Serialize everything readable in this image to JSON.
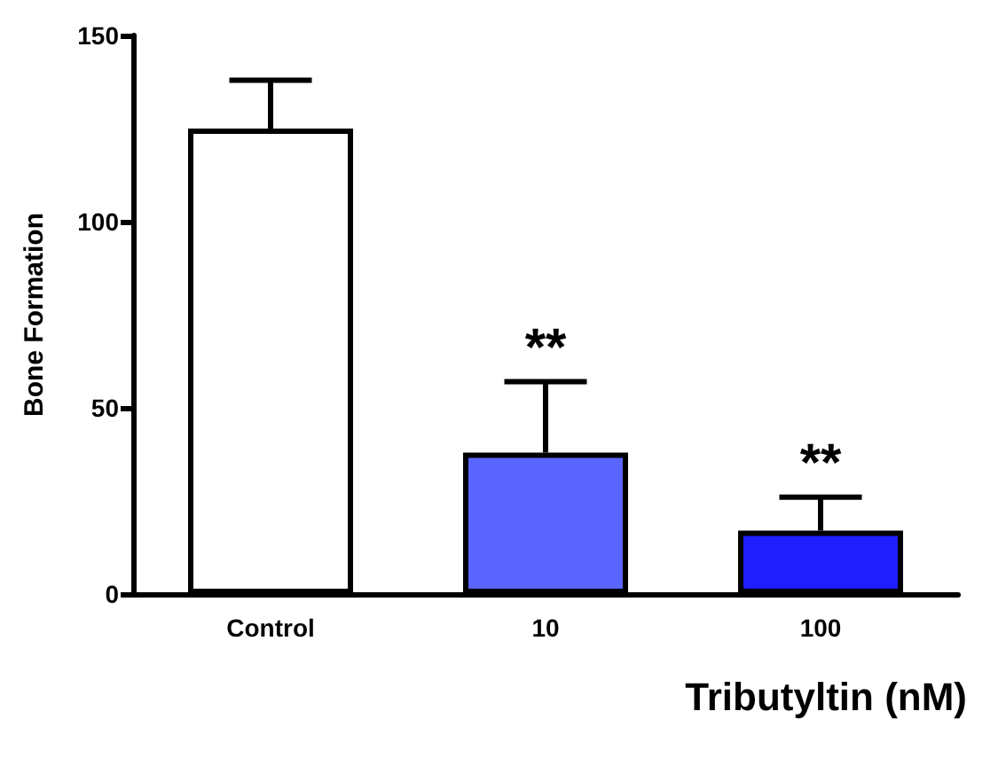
{
  "chart_data": {
    "type": "bar",
    "xlabel": "Tributyltin (nM)",
    "ylabel": "Bone Formation",
    "categories": [
      "Control",
      "10",
      "100"
    ],
    "values": [
      125,
      38,
      17
    ],
    "colors": [
      "#ffffff",
      "#5a64ff",
      "#1e1eff"
    ],
    "errors": [
      [
        125,
        138
      ],
      [
        38,
        57
      ],
      [
        17,
        26
      ]
    ],
    "ylim": [
      0,
      150
    ],
    "yticks": [
      0,
      50,
      100,
      150
    ],
    "grid": false,
    "annotations": [
      {
        "text": "**",
        "x": "10",
        "y": 57
      },
      {
        "text": "**",
        "x": "100",
        "y": 26
      }
    ]
  }
}
